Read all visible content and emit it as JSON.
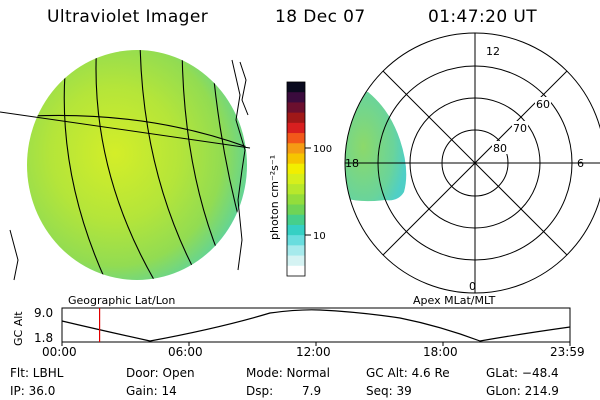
{
  "header": {
    "title": "Ultraviolet Imager",
    "date": "18 Dec 07",
    "time": "01:47:20 UT"
  },
  "colorbar": {
    "unit_label": "photon cm⁻²s⁻¹",
    "ticks": [
      "100",
      "10"
    ],
    "colors": [
      "#0a0a1e",
      "#3a0b3d",
      "#6b0f2e",
      "#a01818",
      "#d81f1f",
      "#f2581a",
      "#f59b14",
      "#f6c500",
      "#f2ee00",
      "#d6ef1c",
      "#b7e82c",
      "#93dd3c",
      "#6fd456",
      "#46cf8b",
      "#36d0c4",
      "#69ddde",
      "#a6eaec",
      "#d5f3f3",
      "#ffffff"
    ]
  },
  "polar": {
    "mlt_labels": [
      "12",
      "18",
      "6",
      "0"
    ],
    "lat_labels": [
      "60",
      "70",
      "80"
    ]
  },
  "captions": {
    "left": "Geographic Lat/Lon",
    "right": "Apex MLat/MLT"
  },
  "timeline": {
    "y_label": "GC Alt",
    "y_ticks": [
      "9.0",
      "1.8"
    ],
    "x_ticks": [
      "00:00",
      "06:00",
      "12:00",
      "18:00",
      "23:59"
    ],
    "current_time_fraction": 0.074
  },
  "info": {
    "filter": "Flt: LBHL",
    "ip": "IP: 36.0",
    "door": "Door: Open",
    "gain": "Gain: 14",
    "mode": "Mode: Normal",
    "dsp_label": "Dsp:",
    "dsp_value": "7.9",
    "gc_alt": "GC Alt: 4.6 Re",
    "seq": "Seq: 39",
    "glat": "GLat: −48.4",
    "glon": "GLon: 214.9"
  }
}
